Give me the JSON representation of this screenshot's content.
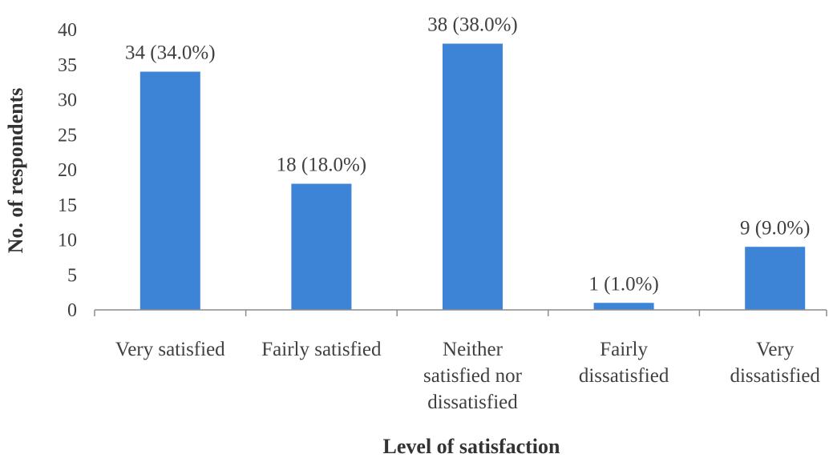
{
  "chart_data": {
    "type": "bar",
    "title": "",
    "xlabel": "Level of satisfaction",
    "ylabel": "No. of respondents",
    "categories": [
      [
        "Very satisfied"
      ],
      [
        "Fairly satisfied"
      ],
      [
        "Neither",
        "satisfied nor",
        "dissatisfied"
      ],
      [
        "Fairly",
        "dissatisfied"
      ],
      [
        "Very",
        "dissatisfied"
      ]
    ],
    "values": [
      34,
      18,
      38,
      1,
      9
    ],
    "data_labels": [
      "34 (34.0%)",
      "18 (18.0%)",
      "38 (38.0%)",
      "1 (1.0%)",
      "9 (9.0%)"
    ],
    "ylim": [
      0,
      40
    ],
    "yticks": [
      0,
      5,
      10,
      15,
      20,
      25,
      30,
      35,
      40
    ],
    "grid": false,
    "legend": "none",
    "colors": {
      "bar": "#3d84d6",
      "axis": "#8c8c8c"
    }
  }
}
